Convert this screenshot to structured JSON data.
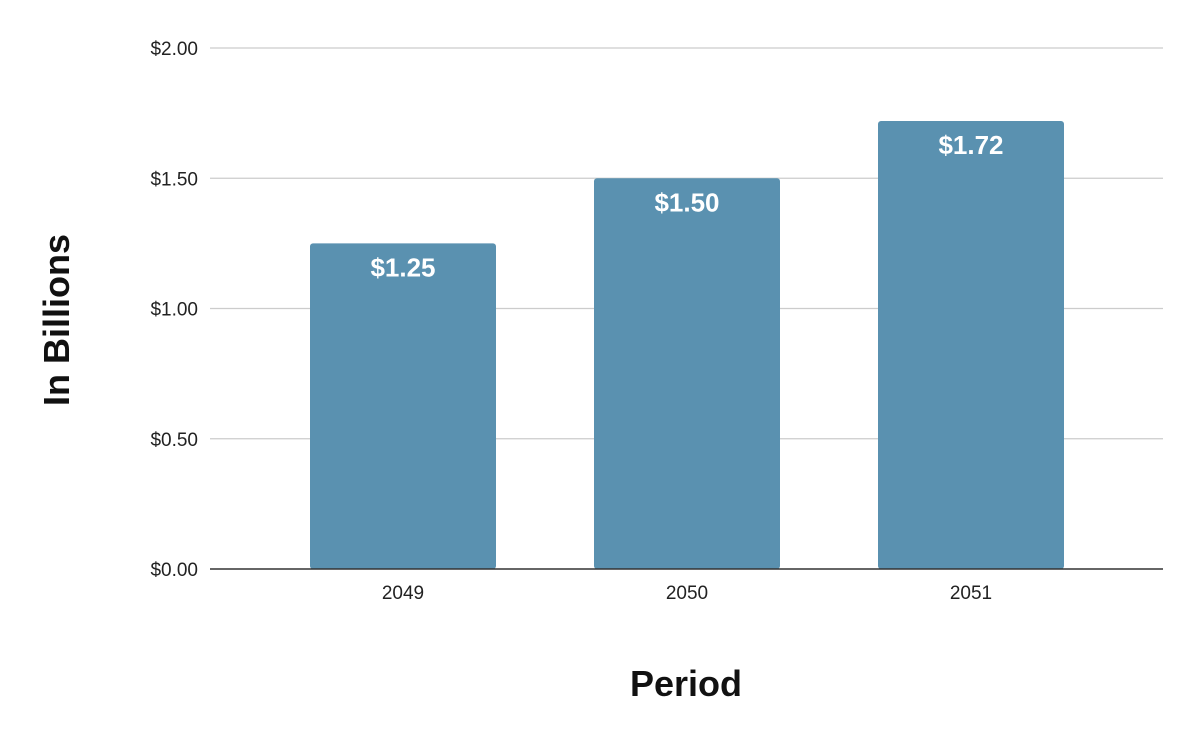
{
  "chart_data": {
    "type": "bar",
    "title": "",
    "xlabel": "Period",
    "ylabel": "In Billions",
    "categories": [
      "2049",
      "2050",
      "2051"
    ],
    "values": [
      1.25,
      1.5,
      1.72
    ],
    "data_labels": [
      "$1.25",
      "$1.50",
      "$1.72"
    ],
    "ylim": [
      0,
      2
    ],
    "yticks": [
      0,
      0.5,
      1,
      1.5,
      2
    ],
    "ytick_labels": [
      "$0.00",
      "$0.50",
      "$1.00",
      "$1.50",
      "$2.00"
    ],
    "grid": true,
    "legend": "none",
    "bar_color": "#5a91b0"
  }
}
